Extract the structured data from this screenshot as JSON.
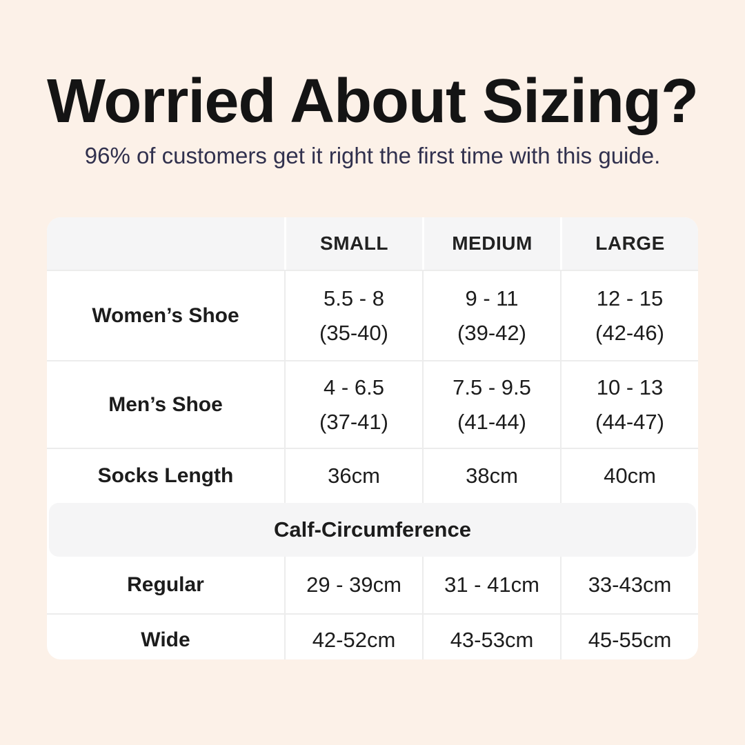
{
  "title": "Worried About Sizing?",
  "subtitle": "96% of customers get it right the first time with this guide.",
  "colors": {
    "background": "#fcf1e8",
    "card_background": "#ffffff",
    "header_background": "#f5f5f6",
    "divider": "#ececec",
    "title_text": "#141414",
    "subtitle_text": "#31314e",
    "table_text": "#1c1c1c"
  },
  "table": {
    "headers": [
      "SMALL",
      "MEDIUM",
      "LARGE"
    ],
    "shoe_rows": [
      {
        "label": "Women’s Shoe",
        "cells": [
          {
            "line1": "5.5 - 8",
            "line2": "(35-40)"
          },
          {
            "line1": "9 - 11",
            "line2": "(39-42)"
          },
          {
            "line1": "12 - 15",
            "line2": "(42-46)"
          }
        ]
      },
      {
        "label": "Men’s Shoe",
        "cells": [
          {
            "line1": "4 - 6.5",
            "line2": "(37-41)"
          },
          {
            "line1": "7.5 - 9.5",
            "line2": "(41-44)"
          },
          {
            "line1": "10 - 13",
            "line2": "(44-47)"
          }
        ]
      }
    ],
    "socks_row": {
      "label": "Socks Length",
      "cells": [
        "36cm",
        "38cm",
        "40cm"
      ]
    },
    "calf_section_label": "Calf-Circumference",
    "calf_rows": [
      {
        "label": "Regular",
        "cells": [
          "29 - 39cm",
          "31 - 41cm",
          "33-43cm"
        ]
      },
      {
        "label": "Wide",
        "cells": [
          "42-52cm",
          "43-53cm",
          "45-55cm"
        ]
      }
    ]
  },
  "chart_data": {
    "type": "table",
    "title": "Worried About Sizing?",
    "subtitle": "96% of customers get it right the first time with this guide.",
    "columns": [
      "",
      "SMALL",
      "MEDIUM",
      "LARGE"
    ],
    "rows": [
      [
        "Women’s Shoe",
        "5.5 - 8 (35-40)",
        "9 - 11 (39-42)",
        "12 - 15 (42-46)"
      ],
      [
        "Men’s Shoe",
        "4 - 6.5 (37-41)",
        "7.5 - 9.5 (41-44)",
        "10 - 13 (44-47)"
      ],
      [
        "Socks Length",
        "36cm",
        "38cm",
        "40cm"
      ],
      [
        "Calf-Circumference",
        "",
        "",
        ""
      ],
      [
        "Regular",
        "29 - 39cm",
        "31 - 41cm",
        "33-43cm"
      ],
      [
        "Wide",
        "42-52cm",
        "43-53cm",
        "45-55cm"
      ]
    ],
    "layout_hints": {
      "section_header_row_index": 3,
      "header_row_shaded": true
    }
  }
}
